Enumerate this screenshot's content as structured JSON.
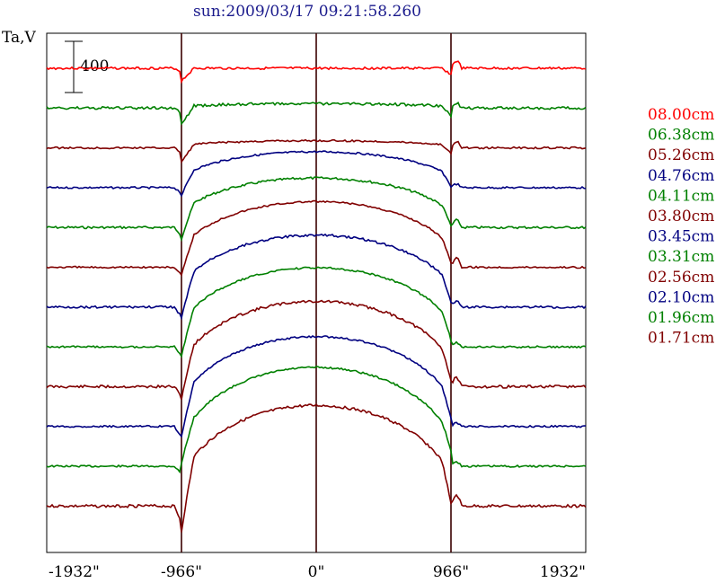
{
  "chart_data": {
    "type": "line",
    "title": "sun:2009/03/17 09:21:58.260",
    "ylabel": "Ta,V",
    "scale_bar_label": "400",
    "xlim": [
      -1932,
      1932
    ],
    "x_ticks": [
      -1932,
      -966,
      0,
      966,
      1932
    ],
    "x_tick_labels": [
      "-1932\"",
      "-966\"",
      "0\"",
      "966\"",
      "1932\""
    ],
    "limb_lines": [
      -966,
      0,
      966
    ],
    "series": [
      {
        "name": "08.00cm",
        "color": "#ff0000",
        "baseline": 0,
        "center": 0,
        "dip": 14,
        "bump": 20,
        "noise": 2.5
      },
      {
        "name": "06.38cm",
        "color": "#008000",
        "baseline": 0,
        "center": 5,
        "dip": 20,
        "bump": 14,
        "noise": 3
      },
      {
        "name": "05.26cm",
        "color": "#800000",
        "baseline": 0,
        "center": 8,
        "dip": 18,
        "bump": 18,
        "noise": 2
      },
      {
        "name": "04.76cm",
        "color": "#000080",
        "baseline": 0,
        "center": 40,
        "dip": 20,
        "bump": 10,
        "noise": 2
      },
      {
        "name": "04.11cm",
        "color": "#008000",
        "baseline": 0,
        "center": 55,
        "dip": 28,
        "bump": 20,
        "noise": 2.5
      },
      {
        "name": "03.80cm",
        "color": "#800000",
        "baseline": 0,
        "center": 73,
        "dip": 30,
        "bump": 25,
        "noise": 2
      },
      {
        "name": "03.45cm",
        "color": "#000080",
        "baseline": 0,
        "center": 80,
        "dip": 35,
        "bump": 15,
        "noise": 2.5
      },
      {
        "name": "03.31cm",
        "color": "#008000",
        "baseline": 0,
        "center": 88,
        "dip": 35,
        "bump": 12,
        "noise": 2
      },
      {
        "name": "02.56cm",
        "color": "#800000",
        "baseline": 0,
        "center": 95,
        "dip": 40,
        "bump": 25,
        "noise": 3
      },
      {
        "name": "02.10cm",
        "color": "#000080",
        "baseline": 0,
        "center": 100,
        "dip": 40,
        "bump": 10,
        "noise": 2
      },
      {
        "name": "01.96cm",
        "color": "#008000",
        "baseline": 0,
        "center": 110,
        "dip": 28,
        "bump": 12,
        "noise": 2
      },
      {
        "name": "01.71cm",
        "color": "#800000",
        "baseline": 0,
        "center": 112,
        "dip": 60,
        "bump": 30,
        "noise": 3
      }
    ]
  }
}
